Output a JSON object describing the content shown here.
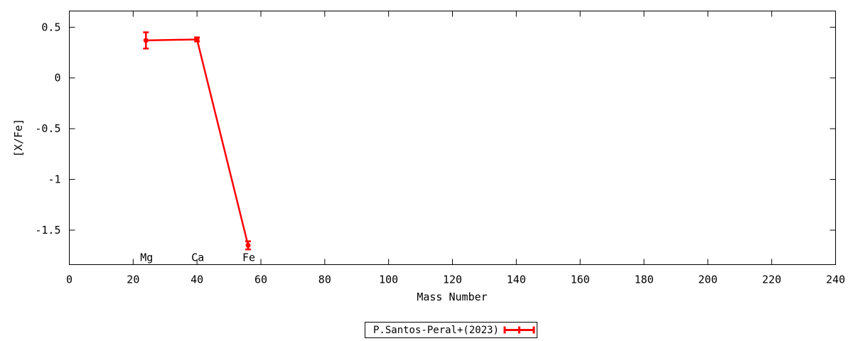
{
  "chart_data": {
    "type": "line",
    "title": "",
    "xlabel": "Mass Number",
    "ylabel": "[X/Fe]",
    "xlim": [
      0,
      240
    ],
    "ylim": [
      -1.84,
      0.66
    ],
    "x_ticks": [
      0,
      20,
      40,
      60,
      80,
      100,
      120,
      140,
      160,
      180,
      200,
      220,
      240
    ],
    "y_ticks": [
      {
        "value": 0.5,
        "label": "0.5"
      },
      {
        "value": 0,
        "label": "0"
      },
      {
        "value": -0.5,
        "label": "-0.5"
      },
      {
        "value": -1,
        "label": "-1"
      },
      {
        "value": -1.5,
        "label": "-1.5"
      }
    ],
    "grid": false,
    "border_color": "#000000",
    "legend_position": "bottom-center-outside",
    "series": [
      {
        "name": "P.Santos-Peral+(2023)",
        "color": "#ff0000",
        "style": "errorlines",
        "points": [
          {
            "element": "Mg",
            "x": 24,
            "y": 0.37,
            "yerr": 0.08
          },
          {
            "element": "Ca",
            "x": 40,
            "y": 0.38,
            "yerr": 0.02
          },
          {
            "element": "Fe",
            "x": 56,
            "y": -1.65,
            "yerr": 0.04
          }
        ]
      }
    ],
    "legend": {
      "label": "P.Santos-Peral+(2023)"
    }
  }
}
